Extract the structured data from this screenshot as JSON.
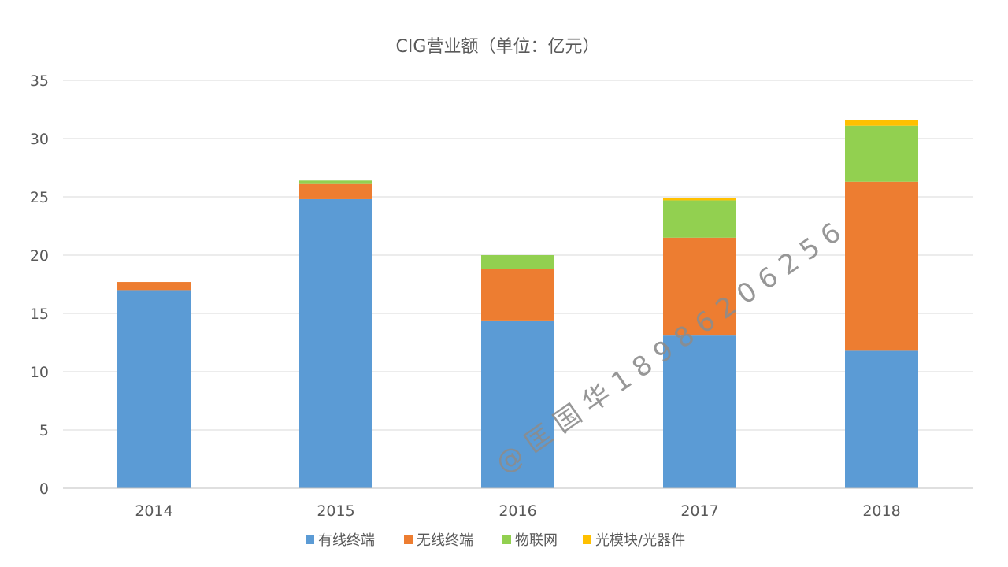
{
  "chart_data": {
    "type": "bar",
    "stacked": true,
    "title": "CIG营业额（单位：亿元）",
    "categories": [
      "2014",
      "2015",
      "2016",
      "2017",
      "2018"
    ],
    "ylim": [
      0,
      35
    ],
    "yticks": [
      0,
      5,
      10,
      15,
      20,
      25,
      30,
      35
    ],
    "grid": true,
    "legend_position": "bottom",
    "series": [
      {
        "name": "有线终端",
        "color": "#5B9BD5",
        "values": [
          17.0,
          24.8,
          14.4,
          13.1,
          11.8
        ]
      },
      {
        "name": "无线终端",
        "color": "#ED7D31",
        "values": [
          0.7,
          1.3,
          4.4,
          8.4,
          14.5
        ]
      },
      {
        "name": "物联网",
        "color": "#92D050",
        "values": [
          0,
          0.3,
          1.2,
          3.2,
          4.8
        ]
      },
      {
        "name": "光模块/光器件",
        "color": "#FFC000",
        "values": [
          0,
          0,
          0,
          0.2,
          0.5
        ]
      }
    ]
  },
  "watermark": "@ 匡 国 华 1 8 9 8 6 2 0 6 2 5 6"
}
